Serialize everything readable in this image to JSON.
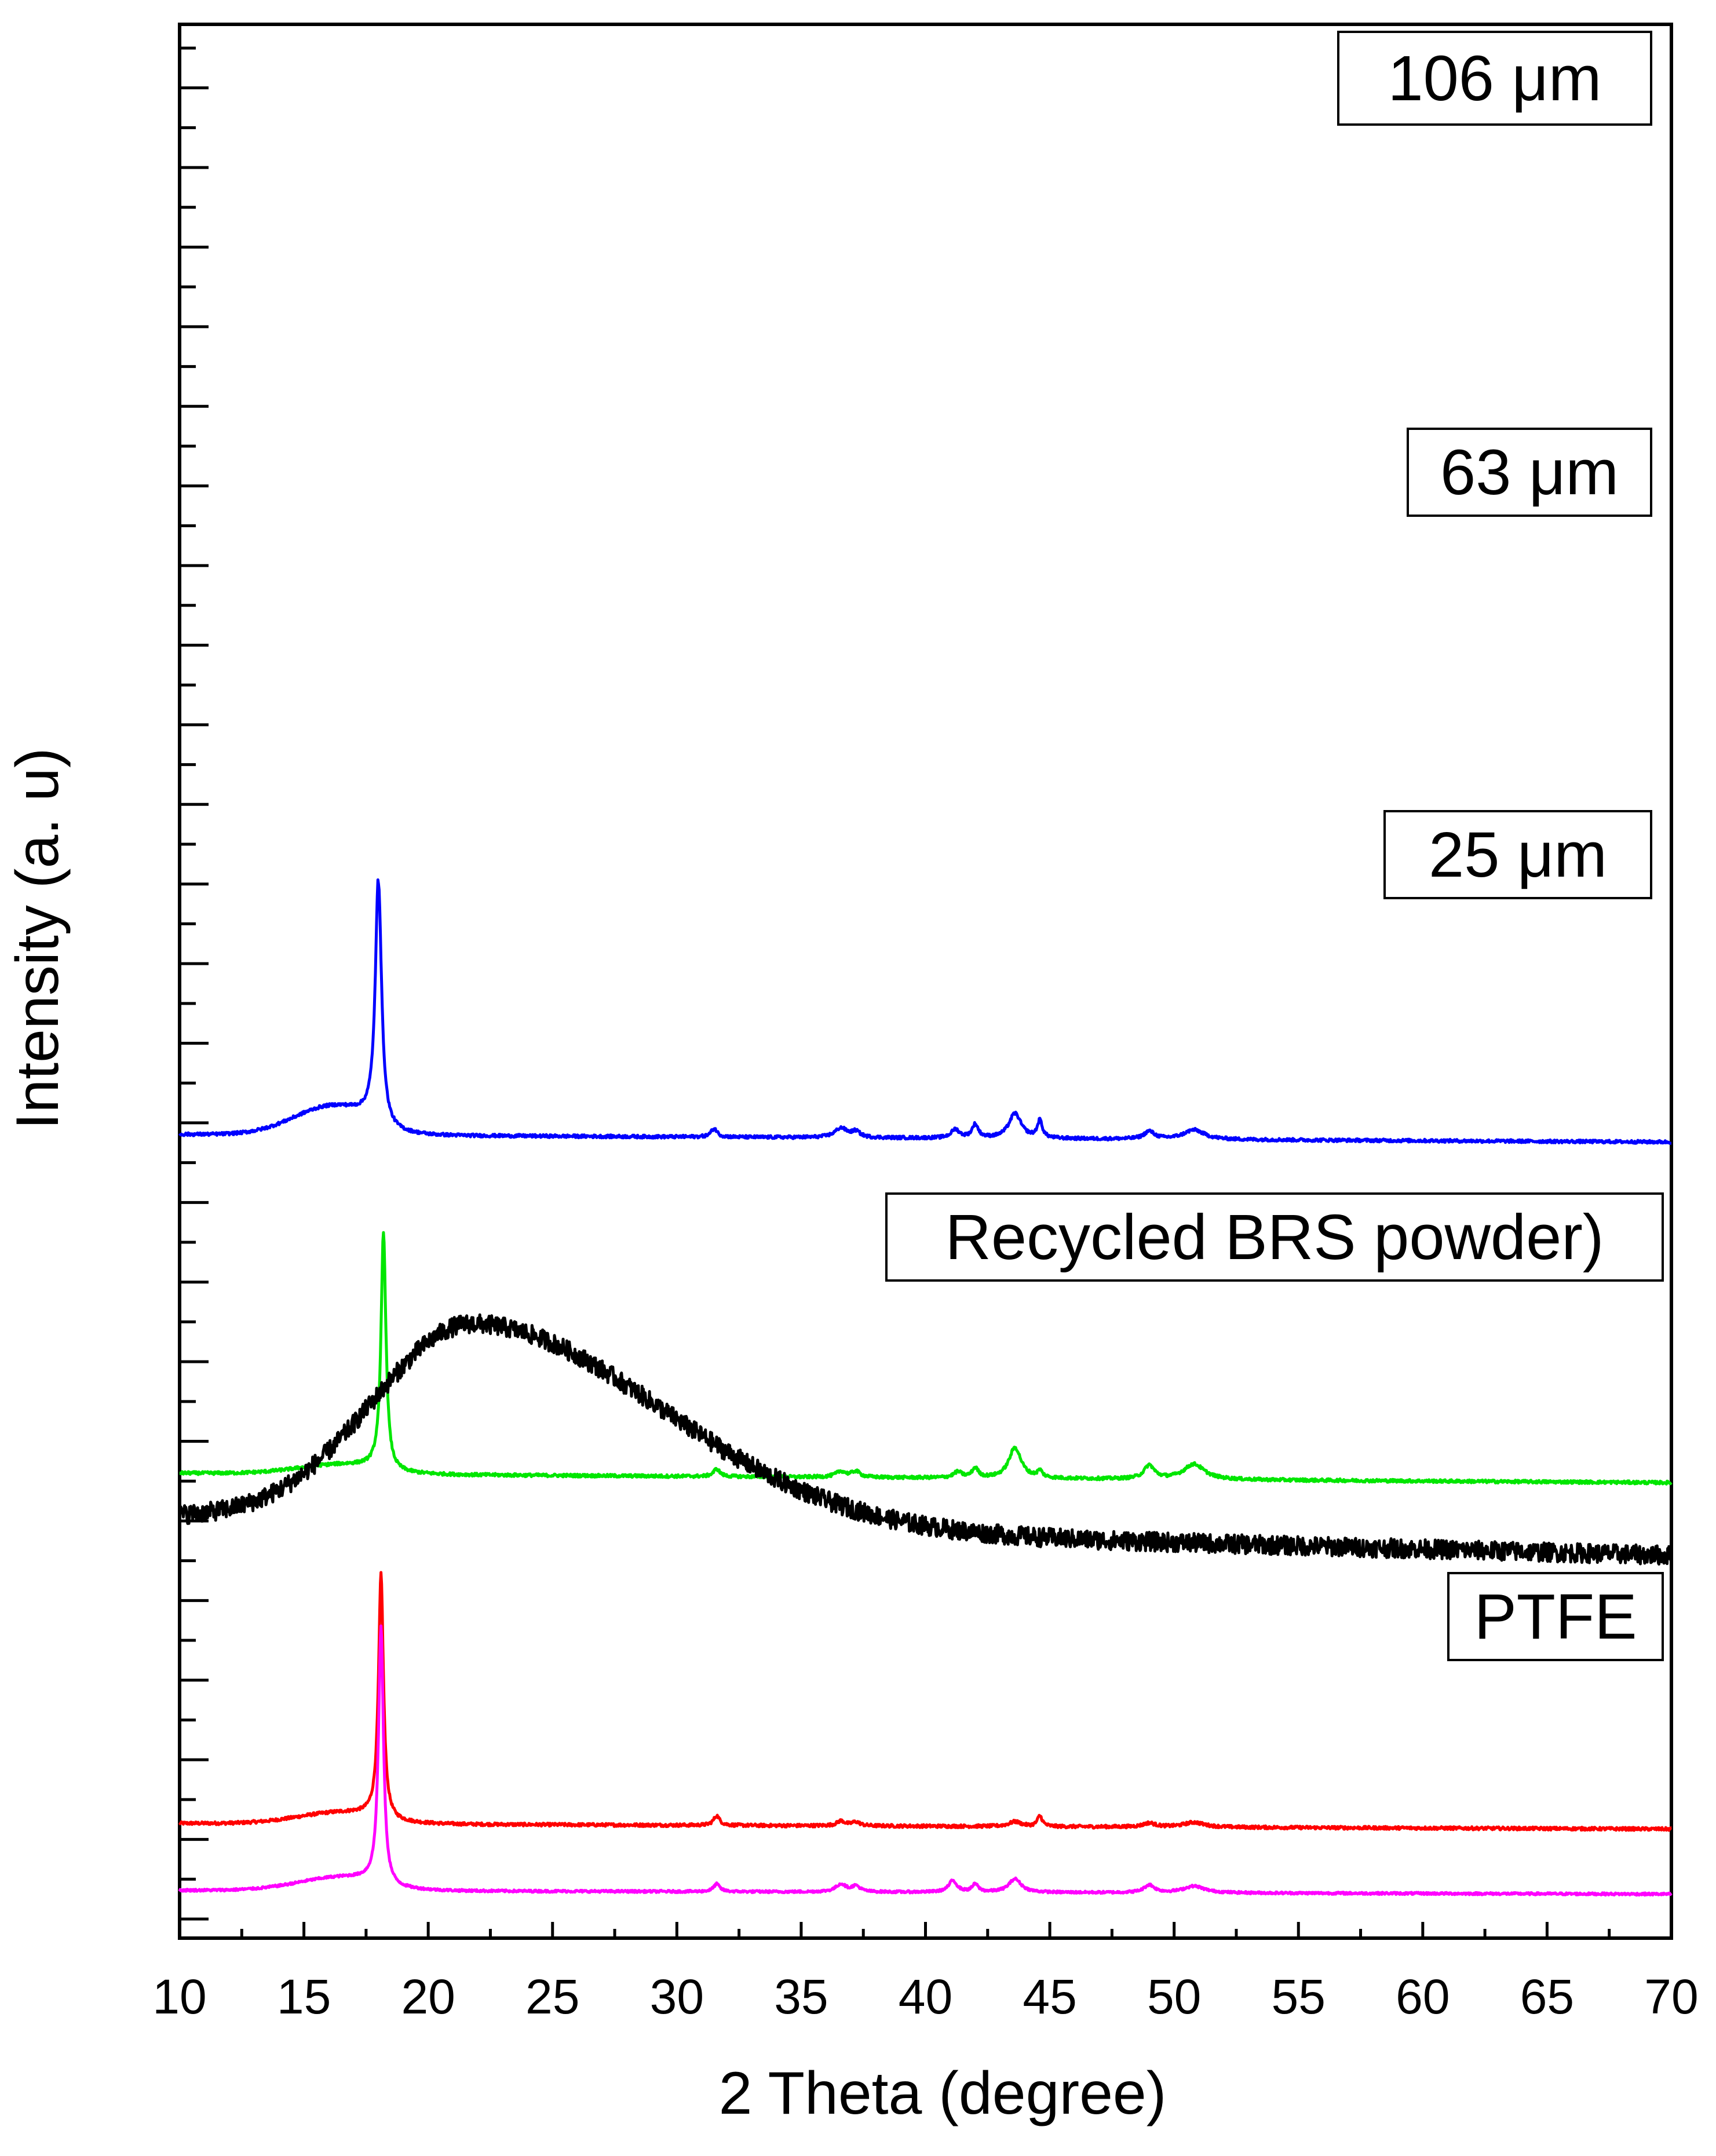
{
  "chart_data": {
    "type": "line",
    "title": "",
    "xlabel": "2 Theta (degree)",
    "ylabel": "Intensity (a. u)",
    "xlim": [
      10,
      70
    ],
    "ylim": [
      0,
      100
    ],
    "x_ticks": [
      10,
      15,
      20,
      25,
      30,
      35,
      40,
      45,
      50,
      55,
      60,
      65,
      70
    ],
    "x_tick_labels": [
      "10",
      "15",
      "20",
      "25",
      "30",
      "35",
      "40",
      "45",
      "50",
      "55",
      "60",
      "65",
      "70"
    ],
    "grid": false,
    "y_tick_labels_shown": false,
    "series": [
      {
        "name": "106 μm",
        "legend_label": "106 μm",
        "color": "#ff0000",
        "baseline": 6.0,
        "peaks": [
          [
            18.1,
            12.9,
            0.12
          ],
          [
            31.6,
            0.5,
            0.15
          ],
          [
            36.6,
            0.25,
            0.2
          ],
          [
            37.2,
            0.2,
            0.2
          ],
          [
            43.6,
            0.25,
            0.3
          ],
          [
            44.6,
            0.55,
            0.12
          ],
          [
            49.0,
            0.2,
            0.3
          ],
          [
            50.8,
            0.25,
            0.5
          ]
        ],
        "hump": [
          16.6,
          0.6,
          1.8
        ],
        "noise": 0.08,
        "end_drop": 0.3
      },
      {
        "name": "63 μm",
        "legend_label": "63 μm",
        "color": "#00e600",
        "baseline": 24.3,
        "peaks": [
          [
            18.2,
            12.5,
            0.12
          ],
          [
            31.6,
            0.4,
            0.15
          ],
          [
            36.6,
            0.3,
            0.25
          ],
          [
            37.2,
            0.3,
            0.2
          ],
          [
            41.3,
            0.3,
            0.2
          ],
          [
            42.0,
            0.5,
            0.15
          ],
          [
            43.6,
            1.6,
            0.3
          ],
          [
            44.6,
            0.35,
            0.12
          ],
          [
            49.0,
            0.7,
            0.25
          ],
          [
            50.8,
            0.8,
            0.5
          ]
        ],
        "hump": [
          16.6,
          0.5,
          1.8
        ],
        "noise": 0.08,
        "end_drop": 0.5
      },
      {
        "name": "25 μm",
        "legend_label": "25 μm",
        "color": "#0000ff",
        "baseline": 42.0,
        "peaks": [
          [
            18.0,
            12.9,
            0.15
          ],
          [
            31.5,
            0.45,
            0.15
          ],
          [
            36.6,
            0.5,
            0.3
          ],
          [
            37.2,
            0.3,
            0.2
          ],
          [
            41.2,
            0.45,
            0.2
          ],
          [
            42.0,
            0.7,
            0.15
          ],
          [
            43.6,
            1.3,
            0.3
          ],
          [
            44.6,
            0.9,
            0.12
          ],
          [
            49.0,
            0.4,
            0.25
          ],
          [
            50.8,
            0.5,
            0.5
          ]
        ],
        "hump": [
          16.2,
          1.5,
          1.6
        ],
        "noise": 0.08,
        "end_drop": 0.4
      },
      {
        "name": "Recycled BRS powder)",
        "legend_label": "Recycled BRS powder)",
        "color": "#000000",
        "baseline": 22.0,
        "amorphous": [
          21.8,
          10.5,
          4.0,
          7.5
        ],
        "noise": 0.5,
        "end_drop": 2.0
      },
      {
        "name": "PTFE",
        "legend_label": "PTFE",
        "color": "#ff00ff",
        "baseline": 2.5,
        "peaks": [
          [
            18.1,
            13.6,
            0.12
          ],
          [
            31.6,
            0.4,
            0.15
          ],
          [
            36.6,
            0.4,
            0.25
          ],
          [
            37.2,
            0.3,
            0.2
          ],
          [
            41.1,
            0.6,
            0.2
          ],
          [
            42.0,
            0.4,
            0.15
          ],
          [
            43.6,
            0.7,
            0.3
          ],
          [
            49.0,
            0.4,
            0.25
          ],
          [
            50.8,
            0.35,
            0.5
          ]
        ],
        "hump": [
          16.6,
          0.7,
          1.8
        ],
        "noise": 0.06,
        "end_drop": 0.2
      }
    ]
  }
}
